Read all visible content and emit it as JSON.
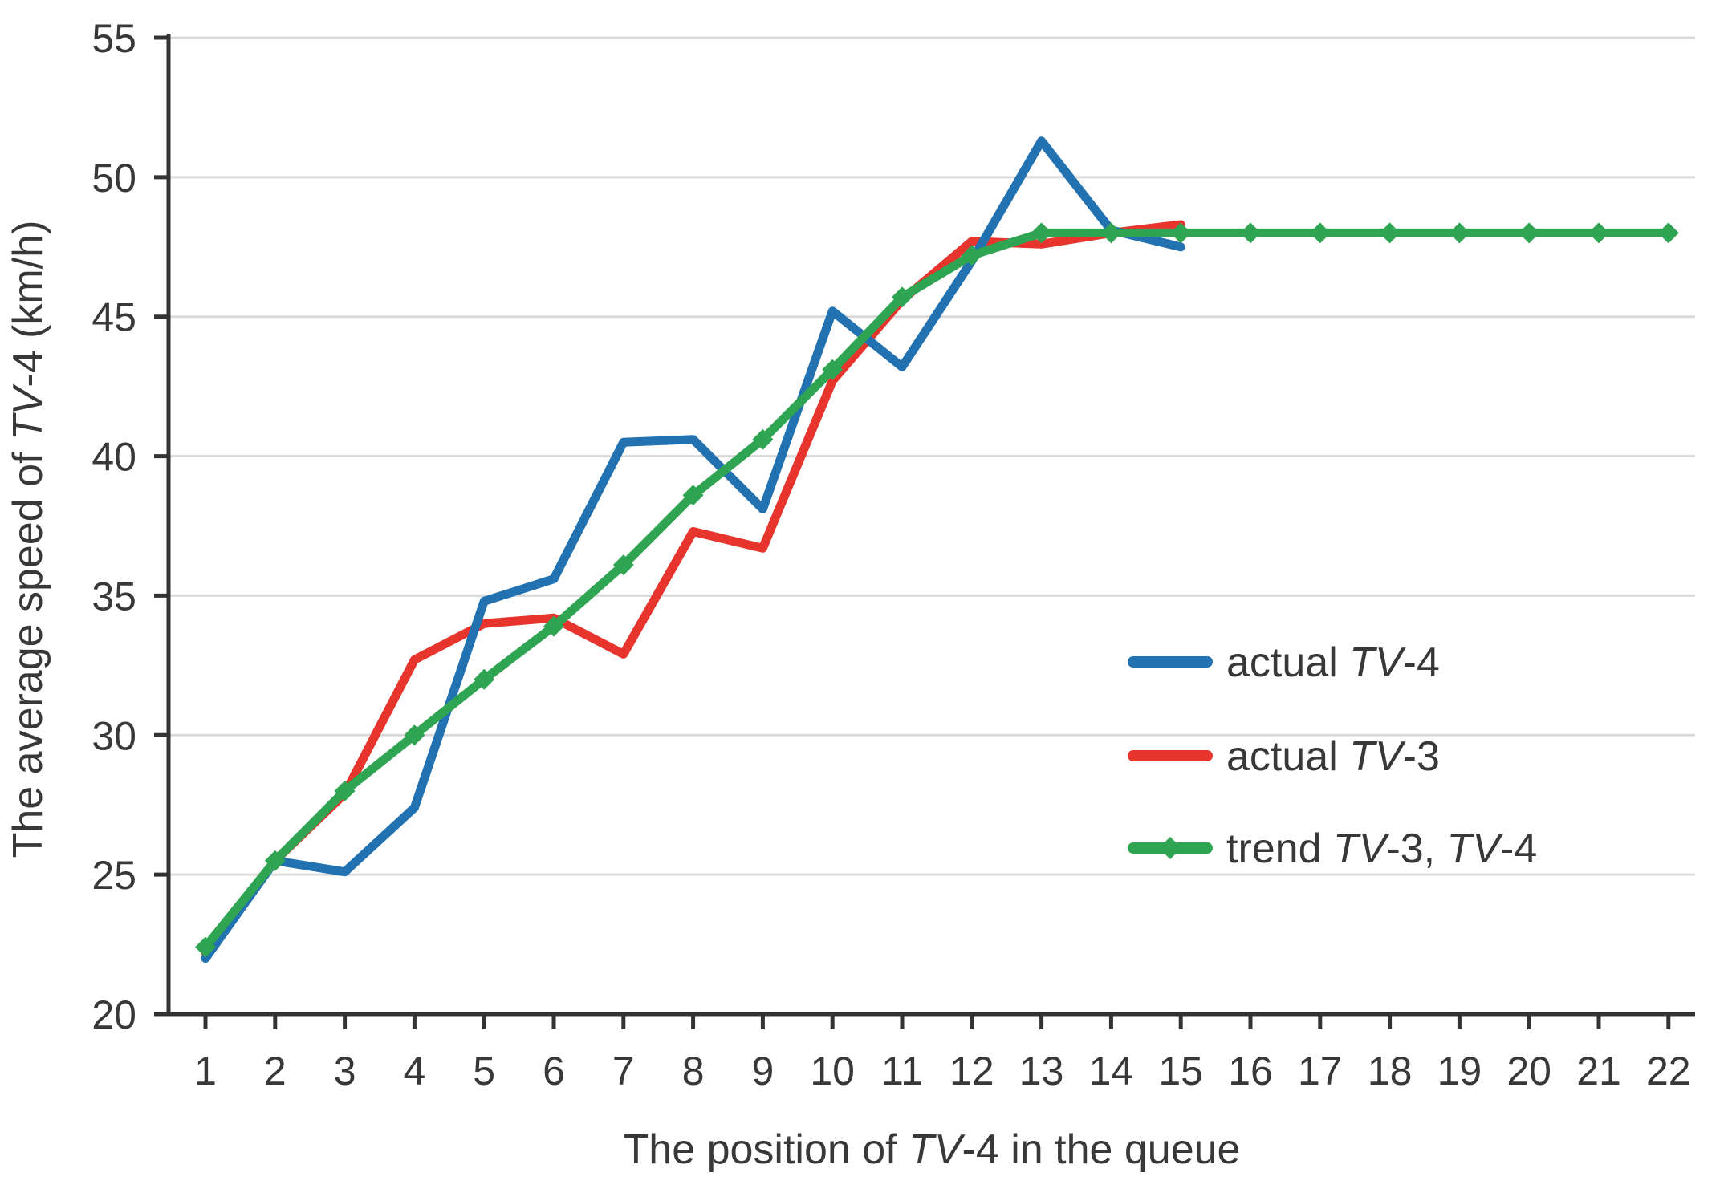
{
  "style": {
    "background": "#FFFFFF",
    "grid_color": "#D9D9D9",
    "axis_color": "#333333",
    "text_color": "#383838",
    "blue": "#2272B2",
    "red": "#E7342D",
    "green": "#2FA452"
  },
  "axes": {
    "y_title_parts": [
      {
        "t": "The average speed of "
      },
      {
        "t": "TV",
        "italic": true
      },
      {
        "t": "-4 (km/h)"
      }
    ],
    "x_title_parts": [
      {
        "t": "The position of "
      },
      {
        "t": "TV",
        "italic": true
      },
      {
        "t": "-4 in the queue"
      }
    ]
  },
  "legend": {
    "items": [
      {
        "id": "actual-tv4",
        "color": "#2272B2",
        "marker": "none",
        "parts": [
          {
            "t": "actual "
          },
          {
            "t": "TV",
            "italic": true
          },
          {
            "t": "-4"
          }
        ]
      },
      {
        "id": "actual-tv3",
        "color": "#E7342D",
        "marker": "none",
        "parts": [
          {
            "t": "actual "
          },
          {
            "t": "TV",
            "italic": true
          },
          {
            "t": "-3"
          }
        ]
      },
      {
        "id": "trend-tv3-tv4",
        "color": "#2FA452",
        "marker": "diamond",
        "parts": [
          {
            "t": "trend "
          },
          {
            "t": "TV",
            "italic": true
          },
          {
            "t": "-3, "
          },
          {
            "t": "TV",
            "italic": true
          },
          {
            "t": "-4"
          }
        ]
      }
    ]
  },
  "chart_data": {
    "type": "line",
    "title": "",
    "xlabel": "The position of TV-4 in the queue",
    "ylabel": "The average speed of TV-4 (km/h)",
    "x_ticks": [
      1,
      2,
      3,
      4,
      5,
      6,
      7,
      8,
      9,
      10,
      11,
      12,
      13,
      14,
      15,
      16,
      17,
      18,
      19,
      20,
      21,
      22
    ],
    "y_ticks": [
      20,
      25,
      30,
      35,
      40,
      45,
      50,
      55
    ],
    "ylim": [
      20,
      55
    ],
    "xlim": [
      1,
      22
    ],
    "grid": "horizontal-only",
    "legend_position": "right-middle-overlay",
    "series": [
      {
        "name": "actual TV-4",
        "color": "#2272B2",
        "marker": "none",
        "z": 2,
        "x": [
          1,
          2,
          3,
          4,
          5,
          6,
          7,
          8,
          9,
          10,
          11,
          12,
          13,
          14,
          15
        ],
        "values": [
          22.0,
          25.5,
          25.1,
          27.4,
          34.8,
          35.6,
          40.5,
          40.6,
          38.1,
          45.2,
          43.2,
          47.0,
          51.3,
          48.1,
          47.5
        ]
      },
      {
        "name": "actual TV-3",
        "color": "#E7342D",
        "marker": "none",
        "z": 1,
        "x": [
          1,
          2,
          3,
          4,
          5,
          6,
          7,
          8,
          9,
          10,
          11,
          12,
          13,
          14,
          15
        ],
        "values": [
          22.2,
          25.5,
          27.9,
          32.7,
          34.0,
          34.2,
          32.9,
          37.3,
          36.7,
          42.7,
          45.6,
          47.7,
          47.6,
          48.0,
          48.3
        ]
      },
      {
        "name": "trend TV-3, TV-4",
        "color": "#2FA452",
        "marker": "diamond",
        "z": 3,
        "x": [
          1,
          2,
          3,
          4,
          5,
          6,
          7,
          8,
          9,
          10,
          11,
          12,
          13,
          14,
          15,
          16,
          17,
          18,
          19,
          20,
          21,
          22
        ],
        "values": [
          22.4,
          25.5,
          28.0,
          30.0,
          32.0,
          33.9,
          36.1,
          38.6,
          40.6,
          43.1,
          45.7,
          47.2,
          48.0,
          48.0,
          48.0,
          48.0,
          48.0,
          48.0,
          48.0,
          48.0,
          48.0,
          48.0
        ]
      }
    ]
  }
}
